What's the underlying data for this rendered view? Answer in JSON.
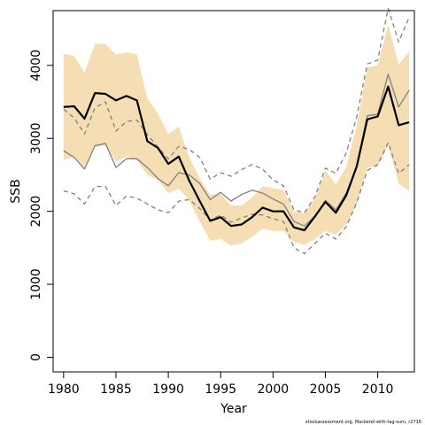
{
  "chart_data": {
    "type": "line",
    "xlabel": "Year",
    "ylabel": "SSB",
    "xlim": [
      1979,
      2013.5
    ],
    "ylim": [
      -200,
      4750
    ],
    "x_ticks": [
      1980,
      1985,
      1990,
      1995,
      2000,
      2005,
      2010
    ],
    "y_ticks": [
      0,
      1000,
      2000,
      3000,
      4000
    ],
    "footer": "stockassessment.org, Mackerel-with-tag-sum, r2716",
    "x": [
      1980,
      1981,
      1982,
      1983,
      1984,
      1985,
      1986,
      1987,
      1988,
      1989,
      1990,
      1991,
      1992,
      1993,
      1994,
      1995,
      1996,
      1997,
      1998,
      1999,
      2000,
      2001,
      2002,
      2003,
      2004,
      2005,
      2006,
      2007,
      2008,
      2009,
      2010,
      2011,
      2012,
      2013
    ],
    "band": {
      "color": "#f5deb3",
      "lower": [
        2700,
        2750,
        2600,
        2880,
        2900,
        2680,
        2750,
        2700,
        2500,
        2430,
        2250,
        2310,
        2150,
        1860,
        1600,
        1620,
        1530,
        1560,
        1650,
        1760,
        1730,
        1730,
        1580,
        1540,
        1620,
        1730,
        1680,
        1820,
        2100,
        2600,
        2620,
        2900,
        2380,
        2280
      ],
      "upper": [
        4160,
        4130,
        3900,
        4300,
        4290,
        4150,
        4180,
        4150,
        3550,
        3340,
        3060,
        3160,
        2740,
        2450,
        2230,
        2240,
        2080,
        2080,
        2190,
        2340,
        2320,
        2290,
        2000,
        1970,
        2180,
        2560,
        2370,
        2610,
        3180,
        3970,
        4000,
        4560,
        4010,
        4190
      ]
    },
    "series": [
      {
        "role": "estimate",
        "color": "#000000",
        "style": "solid",
        "values": [
          3430,
          3440,
          3270,
          3620,
          3610,
          3520,
          3580,
          3520,
          2960,
          2870,
          2650,
          2750,
          2420,
          2140,
          1870,
          1920,
          1800,
          1820,
          1920,
          2050,
          2000,
          2000,
          1780,
          1740,
          1930,
          2130,
          1980,
          2220,
          2620,
          3260,
          3300,
          3710,
          3180,
          3220
        ]
      },
      {
        "role": "comparison",
        "color": "#808080",
        "style": "solid",
        "values": [
          2830,
          2740,
          2580,
          2900,
          2930,
          2600,
          2720,
          2720,
          2600,
          2450,
          2350,
          2530,
          2500,
          2380,
          2160,
          2260,
          2140,
          2230,
          2290,
          2250,
          2170,
          2100,
          1860,
          1800,
          1930,
          2150,
          2020,
          2250,
          2620,
          3310,
          3330,
          3880,
          3430,
          3660
        ]
      },
      {
        "role": "comparison-upper",
        "color": "#808080",
        "style": "dashed",
        "values": [
          3400,
          3280,
          3060,
          3420,
          3500,
          3100,
          3230,
          3250,
          3050,
          2880,
          2720,
          2890,
          2850,
          2740,
          2440,
          2530,
          2480,
          2570,
          2640,
          2580,
          2430,
          2350,
          2020,
          1980,
          2200,
          2590,
          2520,
          2800,
          3300,
          4020,
          4070,
          4780,
          4320,
          4660
        ]
      },
      {
        "role": "comparison-lower",
        "color": "#808080",
        "style": "dashed",
        "values": [
          2280,
          2240,
          2100,
          2340,
          2340,
          2080,
          2210,
          2180,
          2100,
          2020,
          1980,
          2140,
          2160,
          2040,
          1880,
          1950,
          1850,
          1910,
          1960,
          1950,
          1900,
          1860,
          1500,
          1420,
          1560,
          1700,
          1620,
          1790,
          2120,
          2560,
          2640,
          2940,
          2520,
          2640
        ]
      }
    ]
  }
}
